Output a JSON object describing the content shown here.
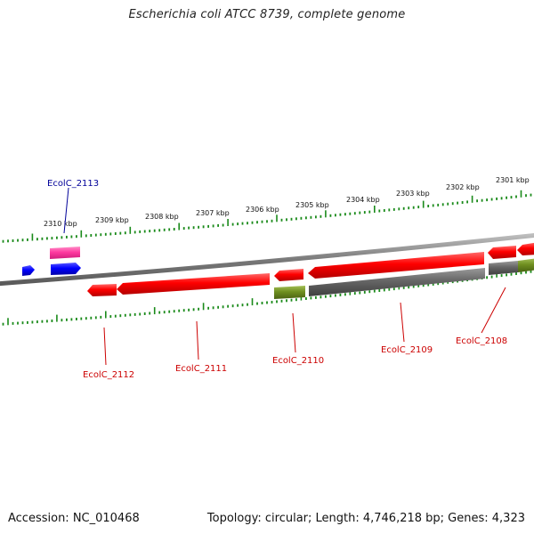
{
  "title": "Escherichia coli ATCC 8739, complete genome",
  "footer": {
    "accession": "Accession: NC_010468",
    "summary": "Topology: circular; Length: 4,746,218 bp; Genes: 4,323"
  },
  "colors": {
    "backbone": "#8c8c8c",
    "tick": "#1a8a1a",
    "forward_gene": "#ff0000",
    "reverse_gene": "#ff0000",
    "rna_gene": "#ff3aa0",
    "other_gene": "#0000ff",
    "pseudo_gene": "#6f8f20",
    "gray_gene": "#666666",
    "label_red": "#cc0000",
    "label_blue": "#000099"
  },
  "kbp_labels": [
    {
      "text": "2310 kbp"
    },
    {
      "text": "2309 kbp"
    },
    {
      "text": "2308 kbp"
    },
    {
      "text": "2307 kbp"
    },
    {
      "text": "2306 kbp"
    },
    {
      "text": "2305 kbp"
    },
    {
      "text": "2304 kbp"
    },
    {
      "text": "2303 kbp"
    },
    {
      "text": "2302 kbp"
    },
    {
      "text": "2301 kbp"
    }
  ],
  "gene_labels": [
    {
      "text": "EcolC_2113",
      "color": "blue"
    },
    {
      "text": "EcolC_2112",
      "color": "red"
    },
    {
      "text": "EcolC_2111",
      "color": "red"
    },
    {
      "text": "EcolC_2110",
      "color": "red"
    },
    {
      "text": "EcolC_2109",
      "color": "red"
    },
    {
      "text": "EcolC_2108",
      "color": "red"
    }
  ]
}
